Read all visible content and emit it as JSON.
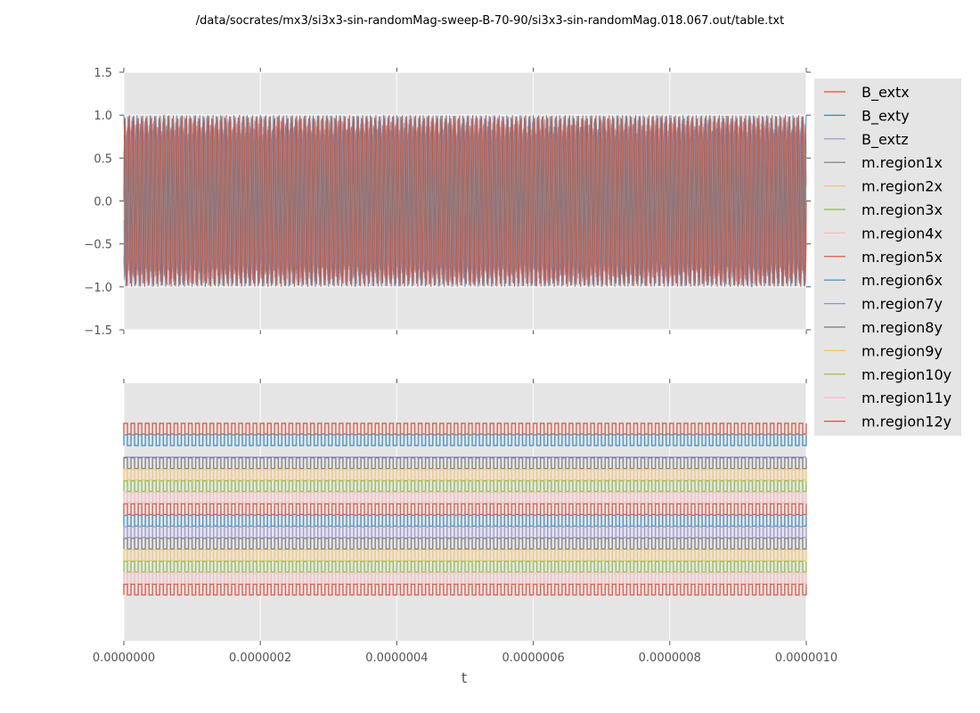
{
  "chart_data": {
    "type": "line",
    "title": "/data/socrates/mx3/si3x3-sin-randomMag-sweep-B-70-90/si3x3-sin-randomMag.018.067.out/table.txt",
    "xlabel": "t",
    "xlim": [
      0,
      1e-06
    ],
    "x_ticks": [
      "0.0000000",
      "0.0000002",
      "0.0000004",
      "0.0000006",
      "0.0000008",
      "0.0000010"
    ],
    "grid": true,
    "background": "#E5E5E5",
    "legend_placement": "outside right, top",
    "panels": [
      {
        "kind": "sinusoidal oscillation, all series overlaid",
        "ylim": [
          -1.5,
          1.5
        ],
        "y_ticks": [
          "1.5",
          "1.0",
          "0.5",
          "0.0",
          "−0.5",
          "−1.0",
          "−1.5"
        ],
        "amplitude": 1.0,
        "cycles_in_xlim": 155
      },
      {
        "kind": "square waves, series stacked vertically",
        "y_ticks": [],
        "cycles_in_xlim": 95
      }
    ],
    "series": [
      {
        "name": "B_extx",
        "color": "#E24A33"
      },
      {
        "name": "B_exty",
        "color": "#348ABD"
      },
      {
        "name": "B_extz",
        "color": "#988ED5"
      },
      {
        "name": "m.region1x",
        "color": "#777777"
      },
      {
        "name": "m.region2x",
        "color": "#FBC15E"
      },
      {
        "name": "m.region3x",
        "color": "#8EBA42"
      },
      {
        "name": "m.region4x",
        "color": "#FFB5B8"
      },
      {
        "name": "m.region5x",
        "color": "#E24A33"
      },
      {
        "name": "m.region6x",
        "color": "#348ABD"
      },
      {
        "name": "m.region7y",
        "color": "#988ED5"
      },
      {
        "name": "m.region8y",
        "color": "#777777"
      },
      {
        "name": "m.region9y",
        "color": "#FBC15E"
      },
      {
        "name": "m.region10y",
        "color": "#8EBA42"
      },
      {
        "name": "m.region11y",
        "color": "#FFB5B8"
      },
      {
        "name": "m.region12y",
        "color": "#E24A33"
      }
    ]
  }
}
